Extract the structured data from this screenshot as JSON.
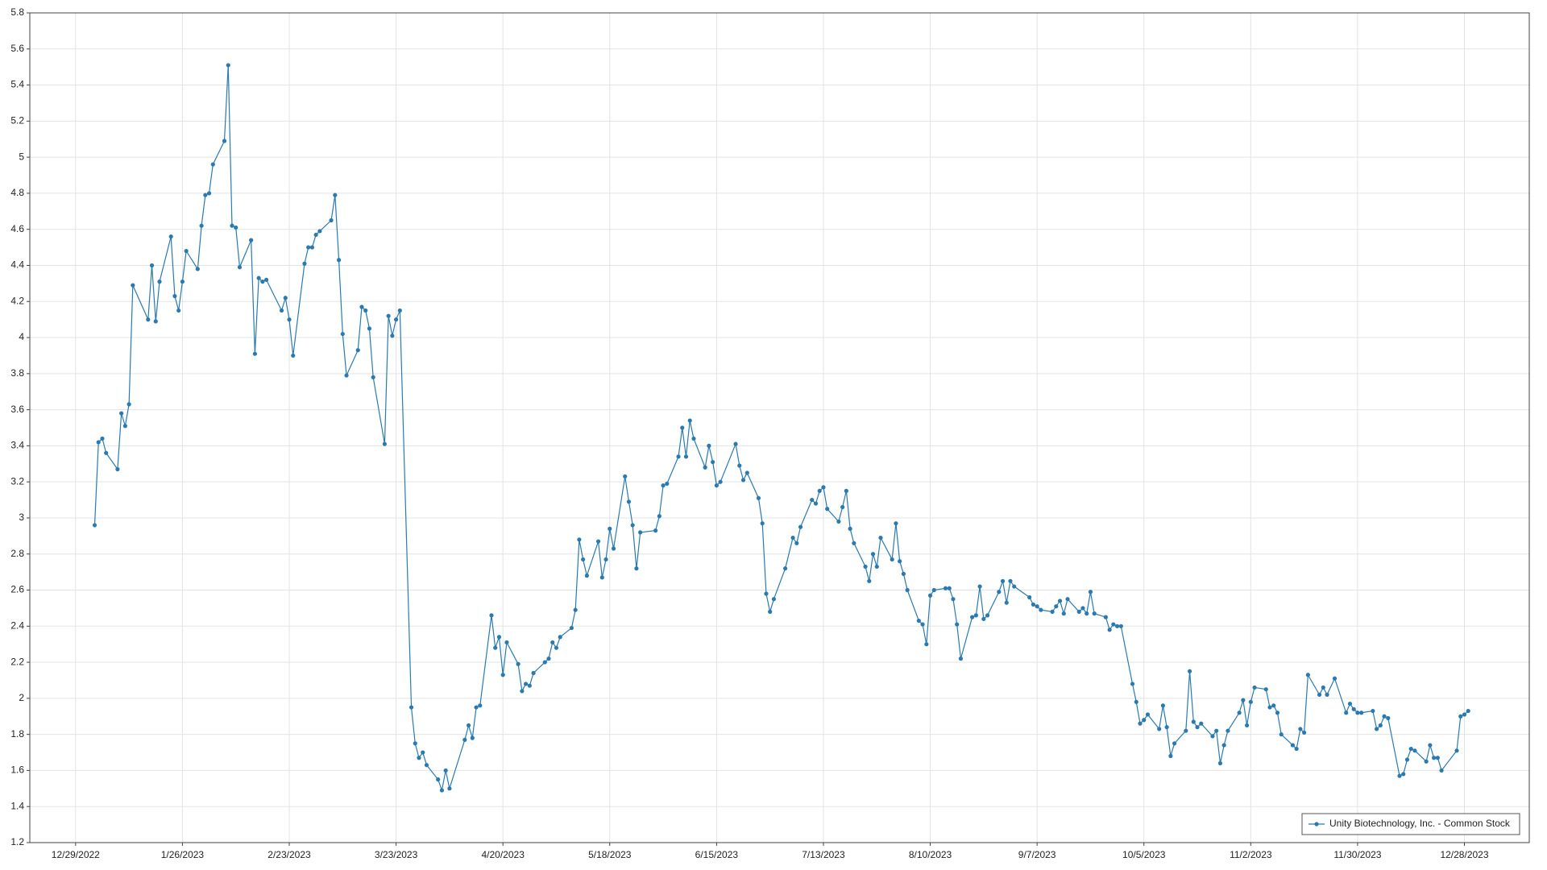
{
  "chart_data": {
    "type": "line",
    "x": [
      "1/3/2023",
      "1/4/2023",
      "1/5/2023",
      "1/6/2023",
      "1/9/2023",
      "1/10/2023",
      "1/11/2023",
      "1/12/2023",
      "1/13/2023",
      "1/17/2023",
      "1/18/2023",
      "1/19/2023",
      "1/20/2023",
      "1/23/2023",
      "1/24/2023",
      "1/25/2023",
      "1/26/2023",
      "1/27/2023",
      "1/30/2023",
      "1/31/2023",
      "2/1/2023",
      "2/2/2023",
      "2/3/2023",
      "2/6/2023",
      "2/7/2023",
      "2/8/2023",
      "2/9/2023",
      "2/10/2023",
      "2/13/2023",
      "2/14/2023",
      "2/15/2023",
      "2/16/2023",
      "2/17/2023",
      "2/21/2023",
      "2/22/2023",
      "2/23/2023",
      "2/24/2023",
      "2/27/2023",
      "2/28/2023",
      "3/1/2023",
      "3/2/2023",
      "3/3/2023",
      "3/6/2023",
      "3/7/2023",
      "3/8/2023",
      "3/9/2023",
      "3/10/2023",
      "3/13/2023",
      "3/14/2023",
      "3/15/2023",
      "3/16/2023",
      "3/17/2023",
      "3/20/2023",
      "3/21/2023",
      "3/22/2023",
      "3/23/2023",
      "3/24/2023",
      "3/27/2023",
      "3/28/2023",
      "3/29/2023",
      "3/30/2023",
      "3/31/2023",
      "4/3/2023",
      "4/4/2023",
      "4/5/2023",
      "4/6/2023",
      "4/10/2023",
      "4/11/2023",
      "4/12/2023",
      "4/13/2023",
      "4/14/2023",
      "4/17/2023",
      "4/18/2023",
      "4/19/2023",
      "4/20/2023",
      "4/21/2023",
      "4/24/2023",
      "4/25/2023",
      "4/26/2023",
      "4/27/2023",
      "4/28/2023",
      "5/1/2023",
      "5/2/2023",
      "5/3/2023",
      "5/4/2023",
      "5/5/2023",
      "5/8/2023",
      "5/9/2023",
      "5/10/2023",
      "5/11/2023",
      "5/12/2023",
      "5/15/2023",
      "5/16/2023",
      "5/17/2023",
      "5/18/2023",
      "5/19/2023",
      "5/22/2023",
      "5/23/2023",
      "5/24/2023",
      "5/25/2023",
      "5/26/2023",
      "5/30/2023",
      "5/31/2023",
      "6/1/2023",
      "6/2/2023",
      "6/5/2023",
      "6/6/2023",
      "6/7/2023",
      "6/8/2023",
      "6/9/2023",
      "6/12/2023",
      "6/13/2023",
      "6/14/2023",
      "6/15/2023",
      "6/16/2023",
      "6/20/2023",
      "6/21/2023",
      "6/22/2023",
      "6/23/2023",
      "6/26/2023",
      "6/27/2023",
      "6/28/2023",
      "6/29/2023",
      "6/30/2023",
      "7/3/2023",
      "7/5/2023",
      "7/6/2023",
      "7/7/2023",
      "7/10/2023",
      "7/11/2023",
      "7/12/2023",
      "7/13/2023",
      "7/14/2023",
      "7/17/2023",
      "7/18/2023",
      "7/19/2023",
      "7/20/2023",
      "7/21/2023",
      "7/24/2023",
      "7/25/2023",
      "7/26/2023",
      "7/27/2023",
      "7/28/2023",
      "7/31/2023",
      "8/1/2023",
      "8/2/2023",
      "8/3/2023",
      "8/4/2023",
      "8/7/2023",
      "8/8/2023",
      "8/9/2023",
      "8/10/2023",
      "8/11/2023",
      "8/14/2023",
      "8/15/2023",
      "8/16/2023",
      "8/17/2023",
      "8/18/2023",
      "8/21/2023",
      "8/22/2023",
      "8/23/2023",
      "8/24/2023",
      "8/25/2023",
      "8/28/2023",
      "8/29/2023",
      "8/30/2023",
      "8/31/2023",
      "9/1/2023",
      "9/5/2023",
      "9/6/2023",
      "9/7/2023",
      "9/8/2023",
      "9/11/2023",
      "9/12/2023",
      "9/13/2023",
      "9/14/2023",
      "9/15/2023",
      "9/18/2023",
      "9/19/2023",
      "9/20/2023",
      "9/21/2023",
      "9/22/2023",
      "9/25/2023",
      "9/26/2023",
      "9/27/2023",
      "9/28/2023",
      "9/29/2023",
      "10/2/2023",
      "10/3/2023",
      "10/4/2023",
      "10/5/2023",
      "10/6/2023",
      "10/9/2023",
      "10/10/2023",
      "10/11/2023",
      "10/12/2023",
      "10/13/2023",
      "10/16/2023",
      "10/17/2023",
      "10/18/2023",
      "10/19/2023",
      "10/20/2023",
      "10/23/2023",
      "10/24/2023",
      "10/25/2023",
      "10/26/2023",
      "10/27/2023",
      "10/30/2023",
      "10/31/2023",
      "11/1/2023",
      "11/2/2023",
      "11/3/2023",
      "11/6/2023",
      "11/7/2023",
      "11/8/2023",
      "11/9/2023",
      "11/10/2023",
      "11/13/2023",
      "11/14/2023",
      "11/15/2023",
      "11/16/2023",
      "11/17/2023",
      "11/20/2023",
      "11/21/2023",
      "11/22/2023",
      "11/24/2023",
      "11/27/2023",
      "11/28/2023",
      "11/29/2023",
      "11/30/2023",
      "12/1/2023",
      "12/4/2023",
      "12/5/2023",
      "12/6/2023",
      "12/7/2023",
      "12/8/2023",
      "12/11/2023",
      "12/12/2023",
      "12/13/2023",
      "12/14/2023",
      "12/15/2023",
      "12/18/2023",
      "12/19/2023",
      "12/20/2023",
      "12/21/2023",
      "12/22/2023",
      "12/26/2023",
      "12/27/2023",
      "12/28/2023",
      "12/29/2023"
    ],
    "series": [
      {
        "name": "Unity Biotechnology, Inc. - Common Stock",
        "color": "#2a7ab0",
        "values": [
          2.96,
          3.42,
          3.44,
          3.36,
          3.27,
          3.58,
          3.51,
          3.63,
          4.29,
          4.1,
          4.4,
          4.09,
          4.31,
          4.56,
          4.23,
          4.15,
          4.31,
          4.48,
          4.38,
          4.62,
          4.79,
          4.8,
          4.96,
          5.09,
          5.51,
          4.62,
          4.61,
          4.39,
          4.54,
          3.91,
          4.33,
          4.31,
          4.32,
          4.15,
          4.22,
          4.1,
          3.9,
          4.41,
          4.5,
          4.5,
          4.57,
          4.59,
          4.65,
          4.79,
          4.43,
          4.02,
          3.79,
          3.93,
          4.17,
          4.15,
          4.05,
          3.78,
          3.41,
          4.12,
          4.01,
          4.1,
          4.15,
          1.95,
          1.75,
          1.67,
          1.7,
          1.63,
          1.55,
          1.49,
          1.6,
          1.5,
          1.77,
          1.85,
          1.78,
          1.95,
          1.96,
          2.46,
          2.28,
          2.34,
          2.13,
          2.31,
          2.19,
          2.04,
          2.08,
          2.07,
          2.14,
          2.2,
          2.22,
          2.31,
          2.28,
          2.34,
          2.39,
          2.49,
          2.88,
          2.77,
          2.68,
          2.87,
          2.67,
          2.77,
          2.94,
          2.83,
          3.23,
          3.09,
          2.96,
          2.72,
          2.92,
          2.93,
          3.01,
          3.18,
          3.19,
          3.34,
          3.5,
          3.34,
          3.54,
          3.44,
          3.28,
          3.4,
          3.31,
          3.18,
          3.2,
          3.41,
          3.29,
          3.21,
          3.25,
          3.11,
          2.97,
          2.58,
          2.48,
          2.55,
          2.72,
          2.89,
          2.86,
          2.95,
          3.1,
          3.08,
          3.15,
          3.17,
          3.05,
          2.98,
          3.06,
          3.15,
          2.94,
          2.86,
          2.73,
          2.65,
          2.8,
          2.73,
          2.89,
          2.77,
          2.97,
          2.76,
          2.69,
          2.6,
          2.43,
          2.41,
          2.3,
          2.57,
          2.6,
          2.61,
          2.61,
          2.55,
          2.41,
          2.22,
          2.45,
          2.46,
          2.62,
          2.44,
          2.46,
          2.59,
          2.65,
          2.53,
          2.65,
          2.62,
          2.56,
          2.52,
          2.51,
          2.49,
          2.48,
          2.51,
          2.54,
          2.47,
          2.55,
          2.48,
          2.5,
          2.47,
          2.59,
          2.47,
          2.45,
          2.38,
          2.41,
          2.4,
          2.4,
          2.08,
          1.98,
          1.86,
          1.88,
          1.91,
          1.83,
          1.96,
          1.84,
          1.68,
          1.75,
          1.82,
          2.15,
          1.87,
          1.84,
          1.86,
          1.79,
          1.82,
          1.64,
          1.74,
          1.82,
          1.92,
          1.99,
          1.85,
          1.98,
          2.06,
          2.05,
          1.95,
          1.96,
          1.92,
          1.8,
          1.74,
          1.72,
          1.83,
          1.81,
          2.13,
          2.02,
          2.06,
          2.02,
          2.11,
          1.92,
          1.97,
          1.94,
          1.92,
          1.92,
          1.93,
          1.83,
          1.85,
          1.9,
          1.89,
          1.57,
          1.58,
          1.66,
          1.72,
          1.71,
          1.65,
          1.74,
          1.67,
          1.67,
          1.6,
          1.71,
          1.9,
          1.91,
          1.93
        ]
      }
    ],
    "xlim": [
      "12/17/2022",
      "1/14/2024"
    ],
    "xticks": [
      "12/29/2022",
      "1/26/2023",
      "2/23/2023",
      "3/23/2023",
      "4/20/2023",
      "5/18/2023",
      "6/15/2023",
      "7/13/2023",
      "8/10/2023",
      "9/7/2023",
      "10/5/2023",
      "11/2/2023",
      "11/30/2023",
      "12/28/2023"
    ],
    "ylim": [
      1.2,
      5.8
    ],
    "yticks": [
      1.2,
      1.4,
      1.6,
      1.8,
      2,
      2.2,
      2.4,
      2.6,
      2.8,
      3,
      3.2,
      3.4,
      3.6,
      3.8,
      4,
      4.2,
      4.4,
      4.6,
      4.8,
      5,
      5.2,
      5.4,
      5.6,
      5.8
    ],
    "grid": true,
    "legend": "lower right"
  }
}
